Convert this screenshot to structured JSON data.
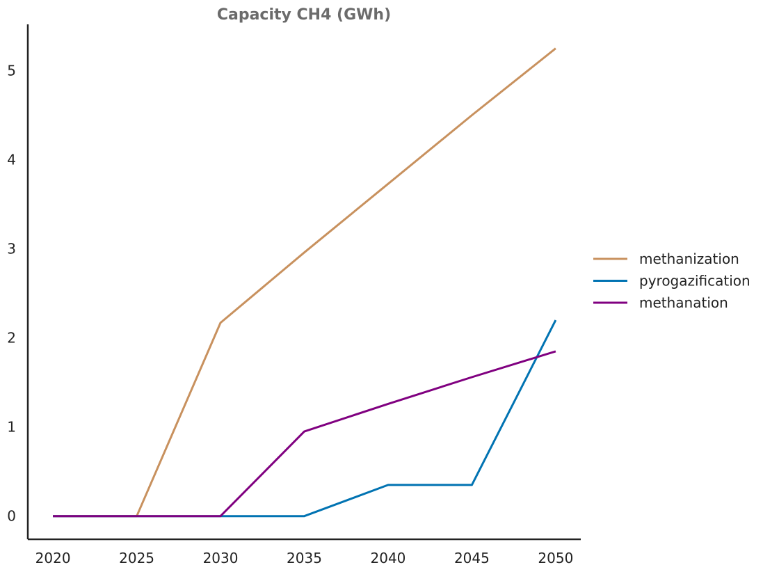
{
  "chart_data": {
    "type": "line",
    "title": "Capacity CH4 (GWh)",
    "xlabel": "",
    "ylabel": "",
    "x": [
      2020,
      2025,
      2030,
      2035,
      2040,
      2045,
      2050
    ],
    "x_ticks": [
      "2020",
      "2025",
      "2030",
      "2035",
      "2040",
      "2045",
      "2050"
    ],
    "y_ticks": [
      "0",
      "1",
      "2",
      "3",
      "4",
      "5"
    ],
    "xlim": [
      2018.5,
      2051.5
    ],
    "ylim": [
      -0.26,
      5.52
    ],
    "grid": false,
    "legend_position": "right",
    "series": [
      {
        "name": "methanization",
        "color": "#c8915e",
        "values": [
          0,
          0,
          2.17,
          2.96,
          3.73,
          4.5,
          5.25
        ]
      },
      {
        "name": "pyrogazification",
        "color": "#0173b2",
        "values": [
          0,
          0,
          0,
          0,
          0.35,
          0.35,
          2.2
        ]
      },
      {
        "name": "methanation",
        "color": "#800080",
        "values": [
          0,
          0,
          0,
          0.95,
          1.26,
          1.56,
          1.85
        ]
      }
    ]
  }
}
